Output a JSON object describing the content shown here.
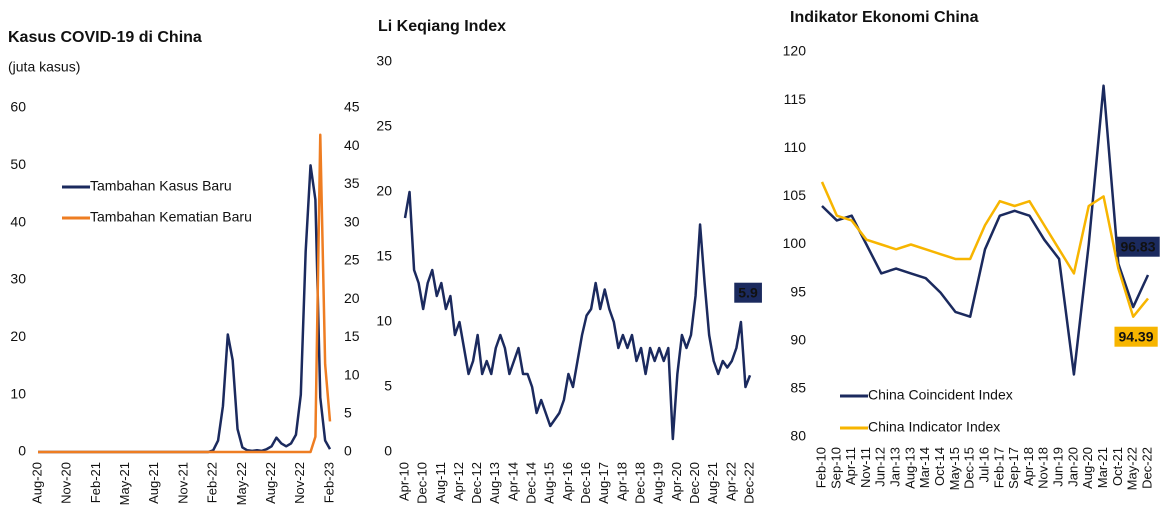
{
  "chart_data": [
    {
      "type": "line",
      "title": "Kasus COVID-19 di China",
      "subtitle": "(juta kasus)",
      "categories": [
        "Aug-20",
        null,
        null,
        null,
        null,
        null,
        "Nov-20",
        null,
        null,
        null,
        null,
        null,
        "Feb-21",
        null,
        null,
        null,
        null,
        null,
        "May-21",
        null,
        null,
        null,
        null,
        null,
        "Aug-21",
        null,
        null,
        null,
        null,
        null,
        "Nov-21",
        null,
        null,
        null,
        null,
        null,
        "Feb-22",
        null,
        null,
        null,
        null,
        null,
        "May-22",
        null,
        null,
        null,
        null,
        null,
        "Aug-22",
        null,
        null,
        null,
        null,
        null,
        "Nov-22",
        null,
        null,
        null,
        null,
        null,
        "Feb-23"
      ],
      "series": [
        {
          "name": "Tambahan Kasus Baru",
          "color": "#1b2a5e",
          "values": [
            0,
            0,
            0,
            0,
            0,
            0,
            0,
            0,
            0,
            0,
            0,
            0,
            0,
            0,
            0,
            0,
            0,
            0,
            0,
            0,
            0,
            0,
            0,
            0,
            0,
            0,
            0,
            0,
            0,
            0,
            0,
            0,
            0,
            0,
            0,
            0,
            0.3,
            2,
            8,
            20.5,
            16,
            4,
            0.8,
            0.3,
            0.2,
            0.3,
            0.2,
            0.5,
            1,
            2.5,
            1.5,
            1,
            1.5,
            3,
            10,
            35,
            50,
            44,
            9.5,
            2,
            0.5
          ]
        },
        {
          "name": "Tambahan Kematian Baru",
          "color": "#ee7d22",
          "axis": "y2",
          "values": [
            0,
            0,
            0,
            0,
            0,
            0,
            0,
            0,
            0,
            0,
            0,
            0,
            0,
            0,
            0,
            0,
            0,
            0,
            0,
            0,
            0,
            0,
            0,
            0,
            0,
            0,
            0,
            0,
            0,
            0,
            0,
            0,
            0,
            0,
            0,
            0,
            0,
            0,
            0,
            0,
            0,
            0,
            0,
            0,
            0,
            0,
            0,
            0,
            0,
            0,
            0,
            0,
            0,
            0,
            0,
            0,
            0,
            2,
            41.5,
            11.5,
            4
          ]
        }
      ],
      "ylim": [
        0,
        60
      ],
      "yticks": [
        0,
        10,
        20,
        30,
        40,
        50,
        60
      ],
      "y2lim": [
        0,
        45
      ],
      "y2ticks": [
        0,
        5,
        10,
        15,
        20,
        25,
        30,
        35,
        40,
        45
      ],
      "grid": false,
      "legend": "upper left"
    },
    {
      "type": "line",
      "title": "Li Keqiang Index",
      "categories": [
        "Apr-10",
        null,
        null,
        null,
        "Dec-10",
        null,
        null,
        null,
        "Aug-11",
        null,
        null,
        null,
        "Apr-12",
        null,
        null,
        null,
        "Dec-12",
        null,
        null,
        null,
        "Aug-13",
        null,
        null,
        null,
        "Apr-14",
        null,
        null,
        null,
        "Dec-14",
        null,
        null,
        null,
        "Aug-15",
        null,
        null,
        null,
        "Apr-16",
        null,
        null,
        null,
        "Dec-16",
        null,
        null,
        null,
        "Aug-17",
        null,
        null,
        null,
        "Apr-18",
        null,
        null,
        null,
        "Dec-18",
        null,
        null,
        null,
        "Aug-19",
        null,
        null,
        null,
        "Apr-20",
        null,
        null,
        null,
        "Dec-20",
        null,
        null,
        null,
        "Aug-21",
        null,
        null,
        null,
        "Apr-22",
        null,
        null,
        null,
        "Dec-22"
      ],
      "values": [
        18,
        20,
        14,
        13,
        11,
        13,
        14,
        12,
        13,
        11,
        12,
        9,
        10,
        8,
        6,
        7,
        9,
        6,
        7,
        6,
        8,
        9,
        8,
        6,
        7,
        8,
        6,
        6,
        5,
        3,
        4,
        3,
        2,
        2.5,
        3,
        4,
        6,
        5,
        7,
        9,
        10.5,
        11,
        13,
        11,
        12.5,
        11,
        10,
        8,
        9,
        8,
        9,
        7,
        8,
        6,
        8,
        7,
        8,
        7,
        8,
        1,
        6,
        9,
        8,
        9,
        12,
        17.5,
        13,
        9,
        7,
        6,
        7,
        6.5,
        7,
        8,
        10,
        5,
        5.9
      ],
      "color": "#1b2a5e",
      "ylim": [
        0,
        30
      ],
      "yticks": [
        0,
        5,
        10,
        15,
        20,
        25,
        30
      ],
      "grid": false
    },
    {
      "type": "line",
      "title": "Indikator Ekonomi China",
      "categories": [
        "Feb-10",
        "Sep-10",
        "Apr-11",
        "Nov-11",
        "Jun-12",
        "Jan-13",
        "Aug-13",
        "Mar-14",
        "Oct-14",
        "May-15",
        "Dec-15",
        "Jul-16",
        "Feb-17",
        "Sep-17",
        "Apr-18",
        "Nov-18",
        "Jun-19",
        "Jan-20",
        "Aug-20",
        "Mar-21",
        "Oct-21",
        "May-22",
        "Dec-22"
      ],
      "series": [
        {
          "name": "China Coincident Index",
          "color": "#1b2a5e",
          "values": [
            104,
            102.5,
            103,
            100,
            97,
            97.5,
            97,
            96.5,
            95,
            93,
            92.5,
            99.5,
            103,
            103.5,
            103,
            100.5,
            98.5,
            86.5,
            100,
            116.5,
            98,
            93.5,
            96.83
          ]
        },
        {
          "name": "China Indicator Index",
          "color": "#f7b500",
          "values": [
            106.5,
            103,
            102.5,
            100.5,
            100,
            99.5,
            100,
            99.5,
            99,
            98.5,
            98.5,
            102,
            104.5,
            104,
            104.5,
            102,
            99.5,
            97,
            104,
            105,
            97.5,
            92.5,
            94.39
          ]
        }
      ],
      "ylim": [
        80,
        120
      ],
      "yticks": [
        80,
        85,
        90,
        95,
        100,
        105,
        110,
        115,
        120
      ],
      "grid": false,
      "legend": "lower left"
    }
  ]
}
